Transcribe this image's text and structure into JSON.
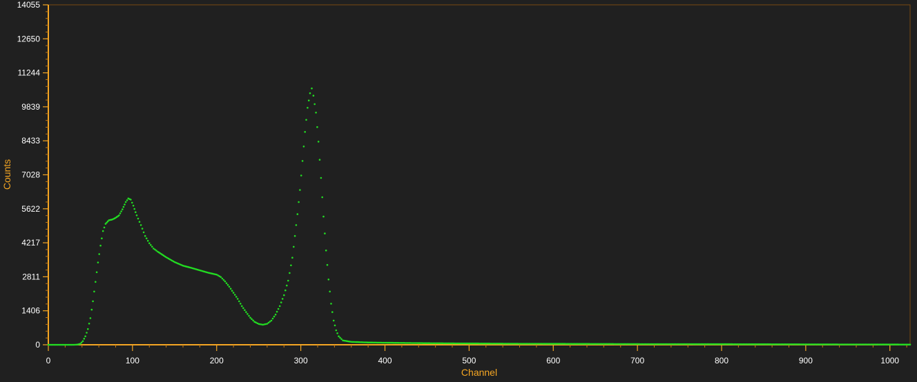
{
  "chart_data": {
    "type": "scatter",
    "xlabel": "Channel",
    "ylabel": "Counts",
    "xlim": [
      0,
      1024
    ],
    "ylim": [
      0,
      14055
    ],
    "x_ticks": [
      0,
      100,
      200,
      300,
      400,
      500,
      600,
      700,
      800,
      900,
      1000
    ],
    "y_ticks": [
      0,
      1406,
      2811,
      4217,
      5622,
      7028,
      8433,
      9839,
      11244,
      12650,
      14055
    ],
    "grid": false,
    "series": [
      {
        "color": "#22dd22",
        "points": [
          [
            0,
            0
          ],
          [
            10,
            0
          ],
          [
            20,
            0
          ],
          [
            30,
            0
          ],
          [
            35,
            10
          ],
          [
            38,
            40
          ],
          [
            41,
            150
          ],
          [
            44,
            350
          ],
          [
            47,
            650
          ],
          [
            50,
            1100
          ],
          [
            53,
            1800
          ],
          [
            56,
            2600
          ],
          [
            59,
            3400
          ],
          [
            62,
            4100
          ],
          [
            65,
            4700
          ],
          [
            68,
            5000
          ],
          [
            72,
            5150
          ],
          [
            76,
            5180
          ],
          [
            80,
            5250
          ],
          [
            84,
            5350
          ],
          [
            88,
            5600
          ],
          [
            92,
            5900
          ],
          [
            95,
            6050
          ],
          [
            98,
            6000
          ],
          [
            101,
            5750
          ],
          [
            105,
            5350
          ],
          [
            110,
            4950
          ],
          [
            115,
            4500
          ],
          [
            120,
            4200
          ],
          [
            125,
            3980
          ],
          [
            130,
            3850
          ],
          [
            140,
            3620
          ],
          [
            150,
            3420
          ],
          [
            160,
            3270
          ],
          [
            170,
            3180
          ],
          [
            180,
            3080
          ],
          [
            190,
            2980
          ],
          [
            200,
            2900
          ],
          [
            205,
            2800
          ],
          [
            210,
            2620
          ],
          [
            215,
            2400
          ],
          [
            220,
            2150
          ],
          [
            225,
            1900
          ],
          [
            230,
            1600
          ],
          [
            235,
            1350
          ],
          [
            240,
            1120
          ],
          [
            245,
            950
          ],
          [
            250,
            860
          ],
          [
            255,
            830
          ],
          [
            260,
            870
          ],
          [
            265,
            1000
          ],
          [
            270,
            1250
          ],
          [
            275,
            1600
          ],
          [
            280,
            2050
          ],
          [
            285,
            2650
          ],
          [
            290,
            3600
          ],
          [
            293,
            4500
          ],
          [
            296,
            5400
          ],
          [
            299,
            6400
          ],
          [
            302,
            7600
          ],
          [
            305,
            8800
          ],
          [
            308,
            9800
          ],
          [
            311,
            10400
          ],
          [
            313,
            10600
          ],
          [
            315,
            10300
          ],
          [
            318,
            9600
          ],
          [
            321,
            8400
          ],
          [
            324,
            6900
          ],
          [
            327,
            5300
          ],
          [
            330,
            3900
          ],
          [
            333,
            2700
          ],
          [
            336,
            1700
          ],
          [
            339,
            1000
          ],
          [
            342,
            600
          ],
          [
            345,
            350
          ],
          [
            350,
            180
          ],
          [
            360,
            120
          ],
          [
            380,
            95
          ],
          [
            400,
            85
          ],
          [
            450,
            65
          ],
          [
            500,
            55
          ],
          [
            550,
            45
          ],
          [
            600,
            40
          ],
          [
            650,
            35
          ],
          [
            700,
            30
          ],
          [
            750,
            28
          ],
          [
            800,
            25
          ],
          [
            850,
            22
          ],
          [
            900,
            18
          ],
          [
            950,
            15
          ],
          [
            1000,
            12
          ],
          [
            1010,
            10
          ],
          [
            1024,
            8
          ]
        ]
      }
    ]
  }
}
